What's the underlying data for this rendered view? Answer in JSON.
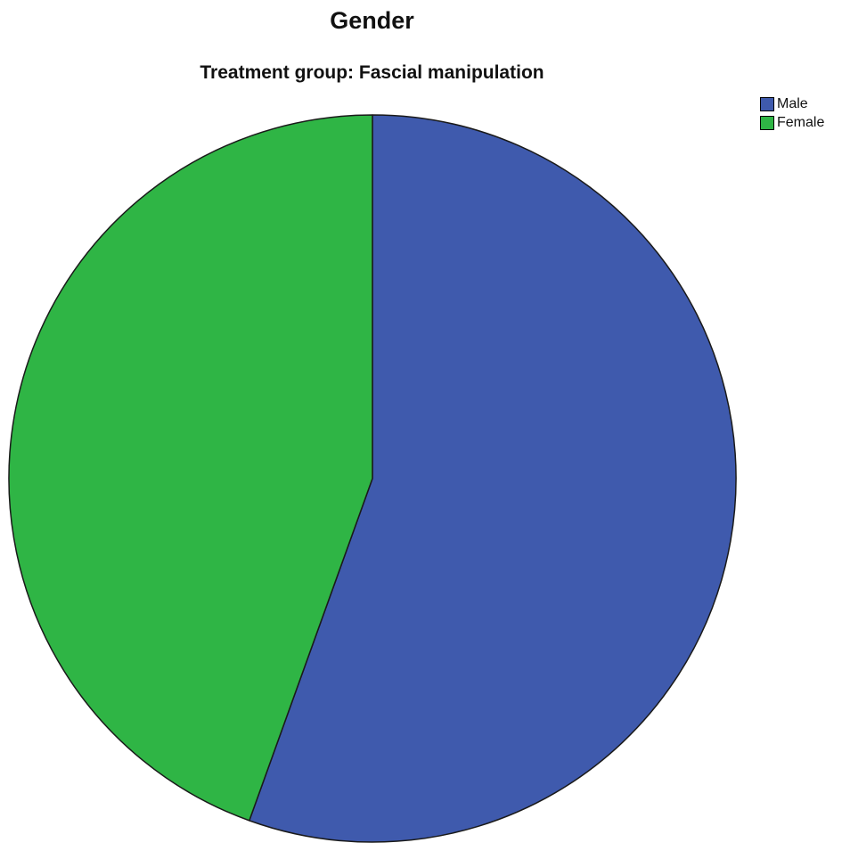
{
  "chart_data": {
    "type": "pie",
    "title": "Gender",
    "subtitle": "Treatment group: Fascial manipulation",
    "legend_position": "top-right",
    "start_angle_deg": 0,
    "direction": "clockwise",
    "slices": [
      {
        "label": "Male",
        "value": 55.5,
        "color": "#3f5aad"
      },
      {
        "label": "Female",
        "value": 44.5,
        "color": "#2fb545"
      }
    ]
  }
}
